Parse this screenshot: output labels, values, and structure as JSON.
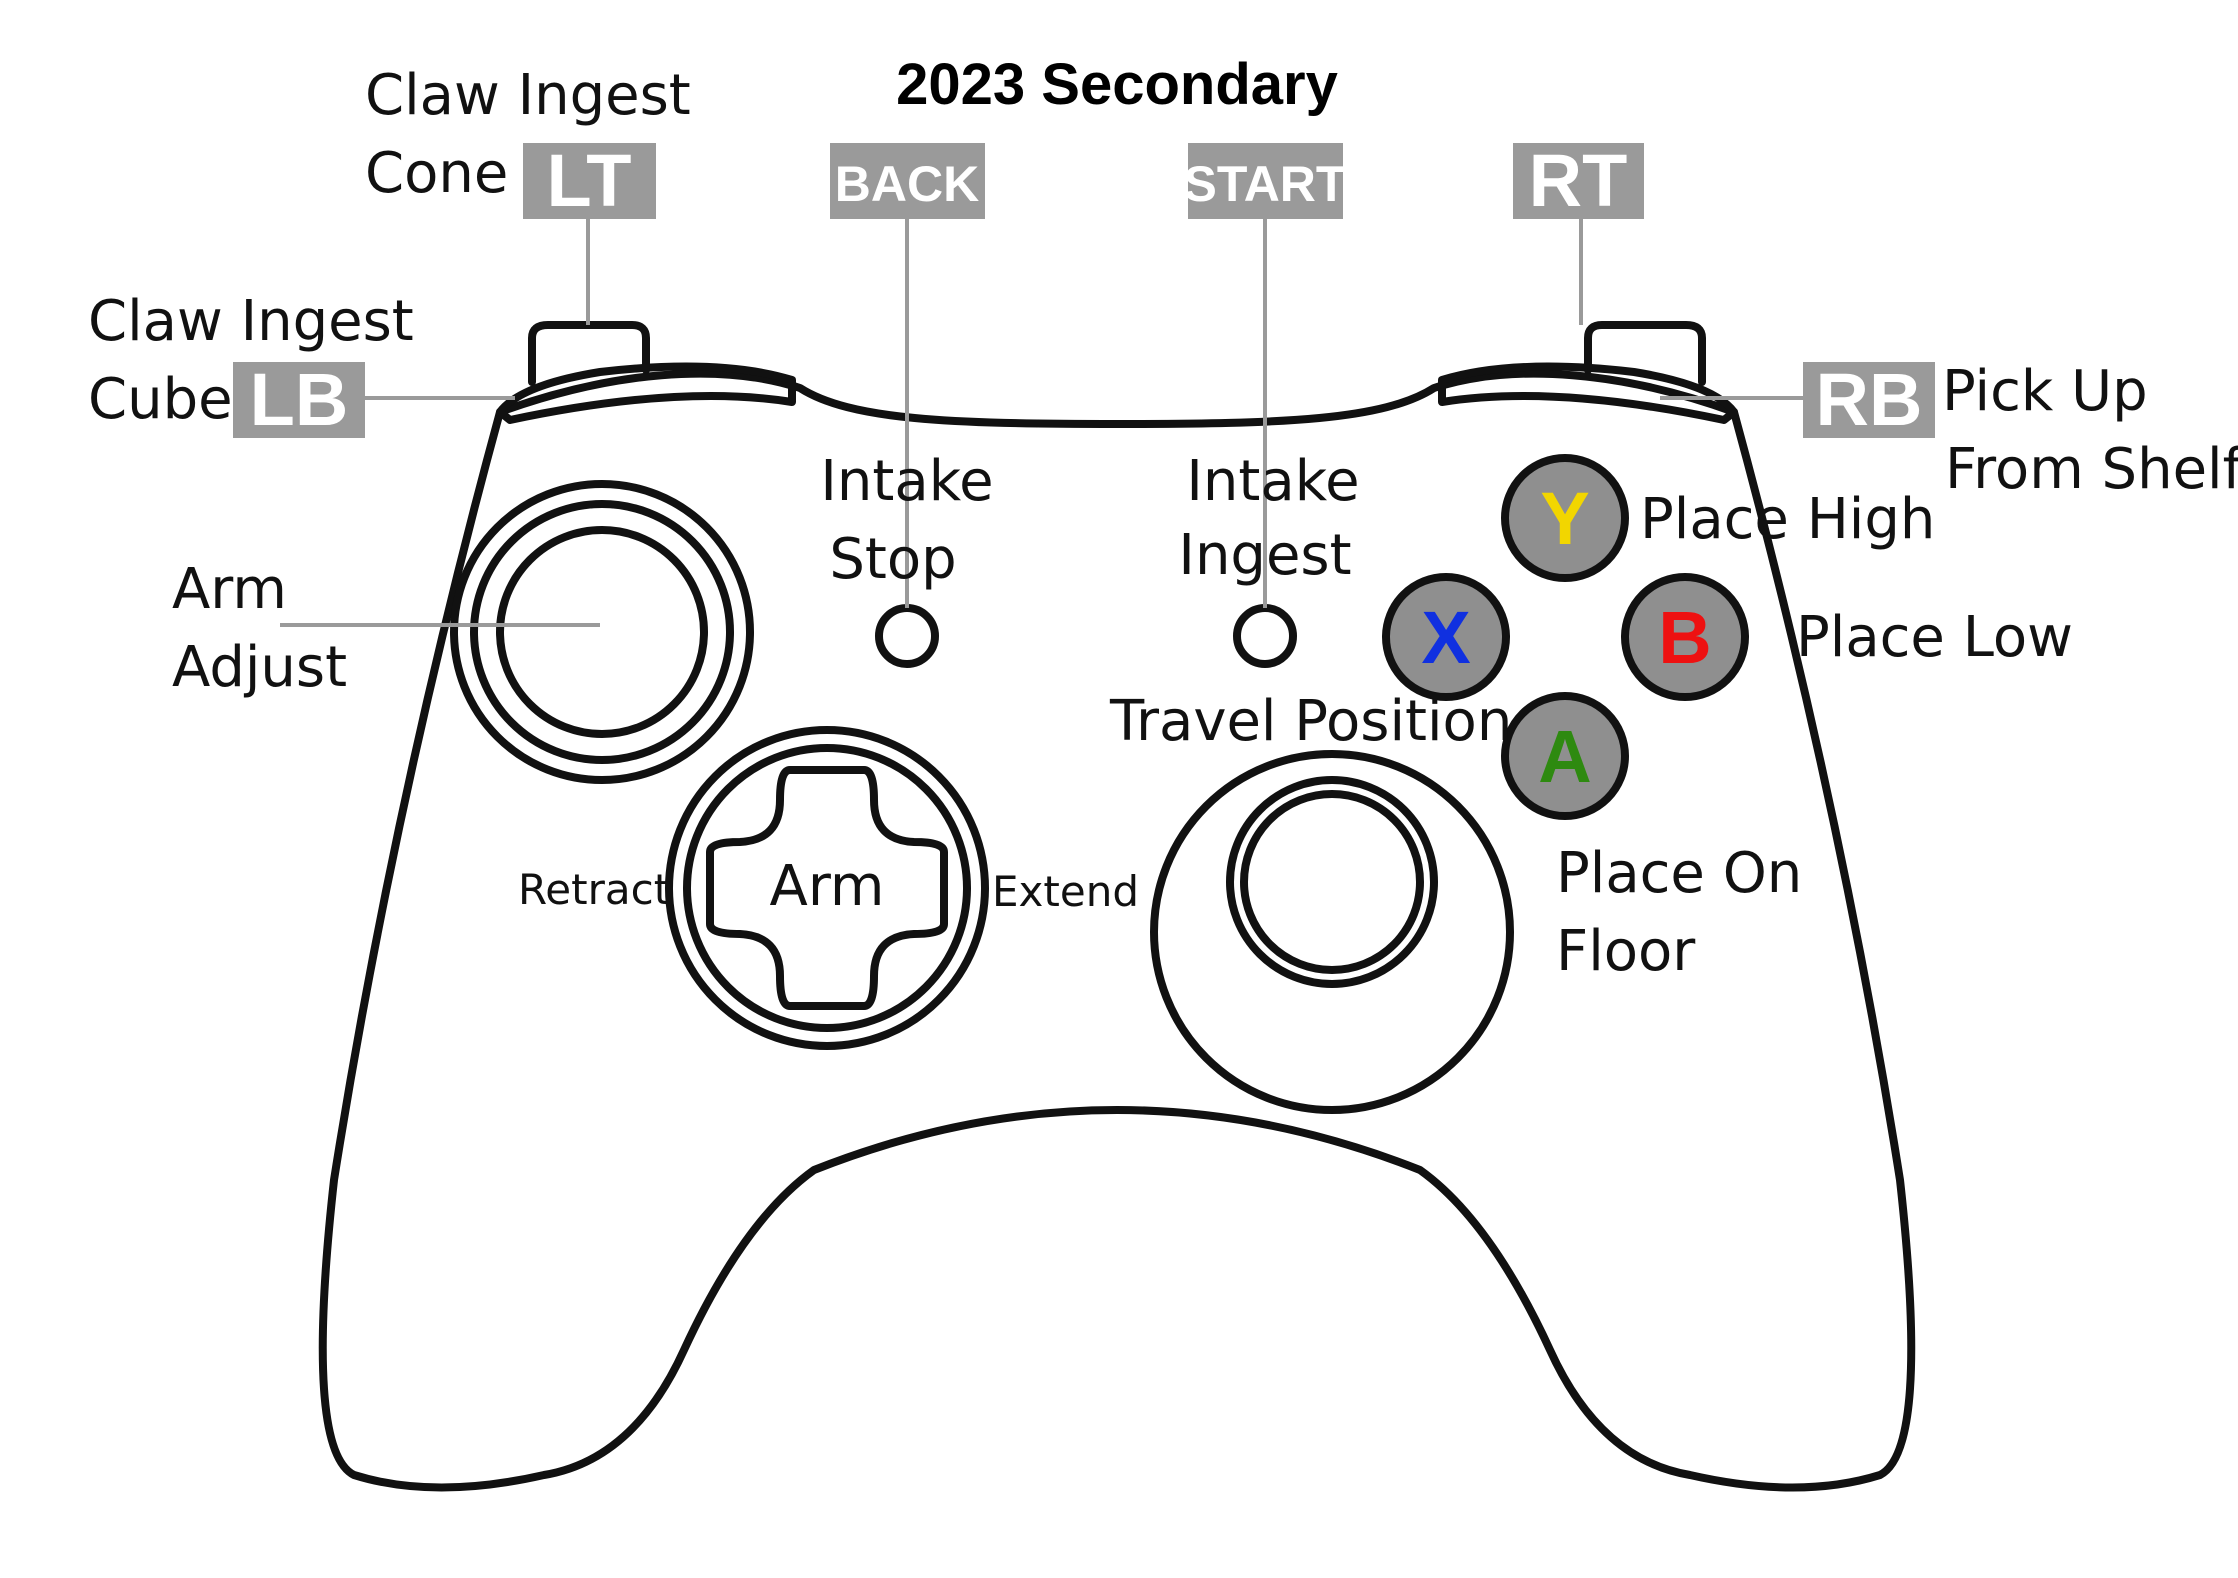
{
  "title": "2023 Secondary",
  "colors": {
    "tag_bg": "#9a9a9a",
    "tag_text": "#ffffff",
    "button_fill": "#8f8f8f",
    "y": "#f2d600",
    "x": "#1030e0",
    "b": "#ee1111",
    "a": "#2e8a10",
    "place_high": "#7a6a10",
    "place_low": "#8a1010",
    "travel_position": "#1533e6",
    "place_on_floor": "#3a8a15"
  },
  "tags": {
    "lt": "LT",
    "lb": "LB",
    "back": "BACK",
    "start": "START",
    "rt": "RT",
    "rb": "RB"
  },
  "face_buttons": {
    "y": "Y",
    "x": "X",
    "b": "B",
    "a": "A"
  },
  "labels": {
    "lt": [
      "Claw Ingest",
      "Cone"
    ],
    "lb": [
      "Claw Ingest",
      "Cube"
    ],
    "back": [
      "Intake",
      "Stop"
    ],
    "start": [
      "Intake",
      "Ingest"
    ],
    "rb": [
      "Pick Up",
      "From Shelf"
    ],
    "left_stick": [
      "Arm",
      "Adjust"
    ],
    "dpad_center": "Arm",
    "dpad_left": "Retract",
    "dpad_right": "Extend",
    "y": "Place High",
    "b": "Place Low",
    "x": "Travel Position",
    "a": [
      "Place On",
      "Floor"
    ]
  }
}
